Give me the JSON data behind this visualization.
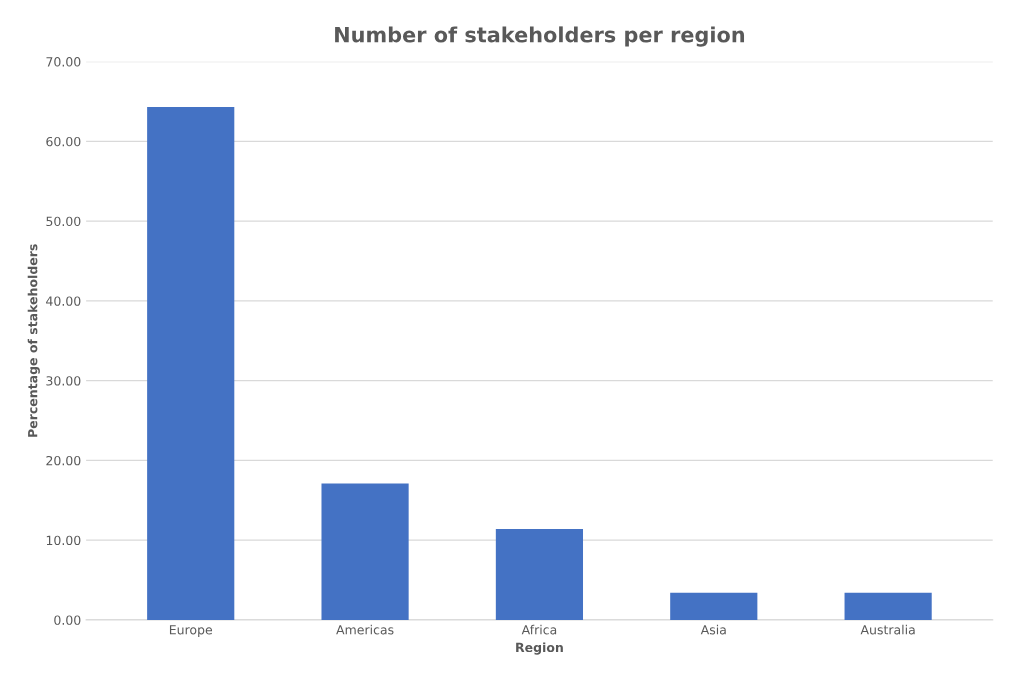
{
  "chart_data": {
    "type": "bar",
    "title": "Number of stakeholders per region",
    "xlabel": "Region",
    "ylabel": "Percentage of stakeholders",
    "categories": [
      "Europe",
      "Americas",
      "Africa",
      "Asia",
      "Australia"
    ],
    "values": [
      64.3,
      17.1,
      11.4,
      3.4,
      3.4
    ],
    "color": "#4472c4",
    "ylim": [
      0,
      70
    ],
    "yticks": [
      {
        "value": 0,
        "label": "0.00"
      },
      {
        "value": 10,
        "label": "10.00"
      },
      {
        "value": 20,
        "label": "20.00"
      },
      {
        "value": 30,
        "label": "30.00"
      },
      {
        "value": 40,
        "label": "40.00"
      },
      {
        "value": 50,
        "label": "50.00"
      },
      {
        "value": 60,
        "label": "60.00"
      },
      {
        "value": 70,
        "label": "70.00"
      }
    ],
    "grid": "y",
    "legend": false
  }
}
